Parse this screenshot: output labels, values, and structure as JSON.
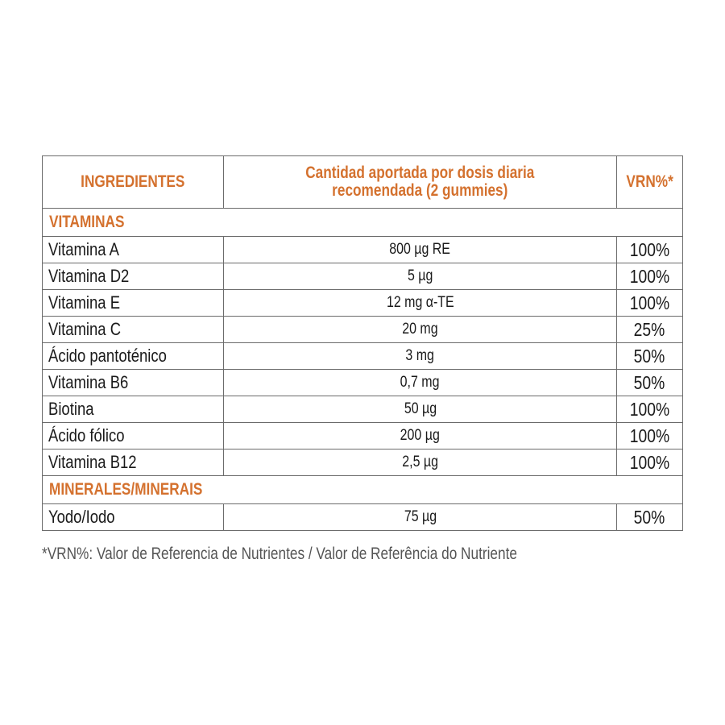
{
  "header": {
    "ingredients": "INGREDIENTES",
    "amount_line1": "Cantidad aportada por dosis diaria",
    "amount_line2": "recomendada (2 gummies)",
    "vrn": "VRN%*"
  },
  "sections": [
    {
      "title": "VITAMINAS",
      "rows": [
        {
          "name": "Vitamina A",
          "amount": "800 µg RE",
          "vrn": "100%"
        },
        {
          "name": "Vitamina D2",
          "amount": "5 µg",
          "vrn": "100%"
        },
        {
          "name": "Vitamina E",
          "amount": "12 mg α-TE",
          "vrn": "100%"
        },
        {
          "name": "Vitamina C",
          "amount": "20 mg",
          "vrn": "25%"
        },
        {
          "name": "Ácido pantoténico",
          "amount": "3 mg",
          "vrn": "50%"
        },
        {
          "name": "Vitamina B6",
          "amount": "0,7 mg",
          "vrn": "50%"
        },
        {
          "name": "Biotina",
          "amount": "50 µg",
          "vrn": "100%"
        },
        {
          "name": "Ácido fólico",
          "amount": "200 µg",
          "vrn": "100%"
        },
        {
          "name": "Vitamina B12",
          "amount": "2,5 µg",
          "vrn": "100%"
        }
      ]
    },
    {
      "title": "MINERALES/MINERAIS",
      "rows": [
        {
          "name": "Yodo/Iodo",
          "amount": "75 µg",
          "vrn": "50%"
        }
      ]
    }
  ],
  "footnote": "*VRN%: Valor de Referencia de Nutrientes / Valor de Referência do Nutriente",
  "colors": {
    "accent": "#d4712e",
    "border": "#6b6b6b",
    "text": "#1a1a1a"
  }
}
